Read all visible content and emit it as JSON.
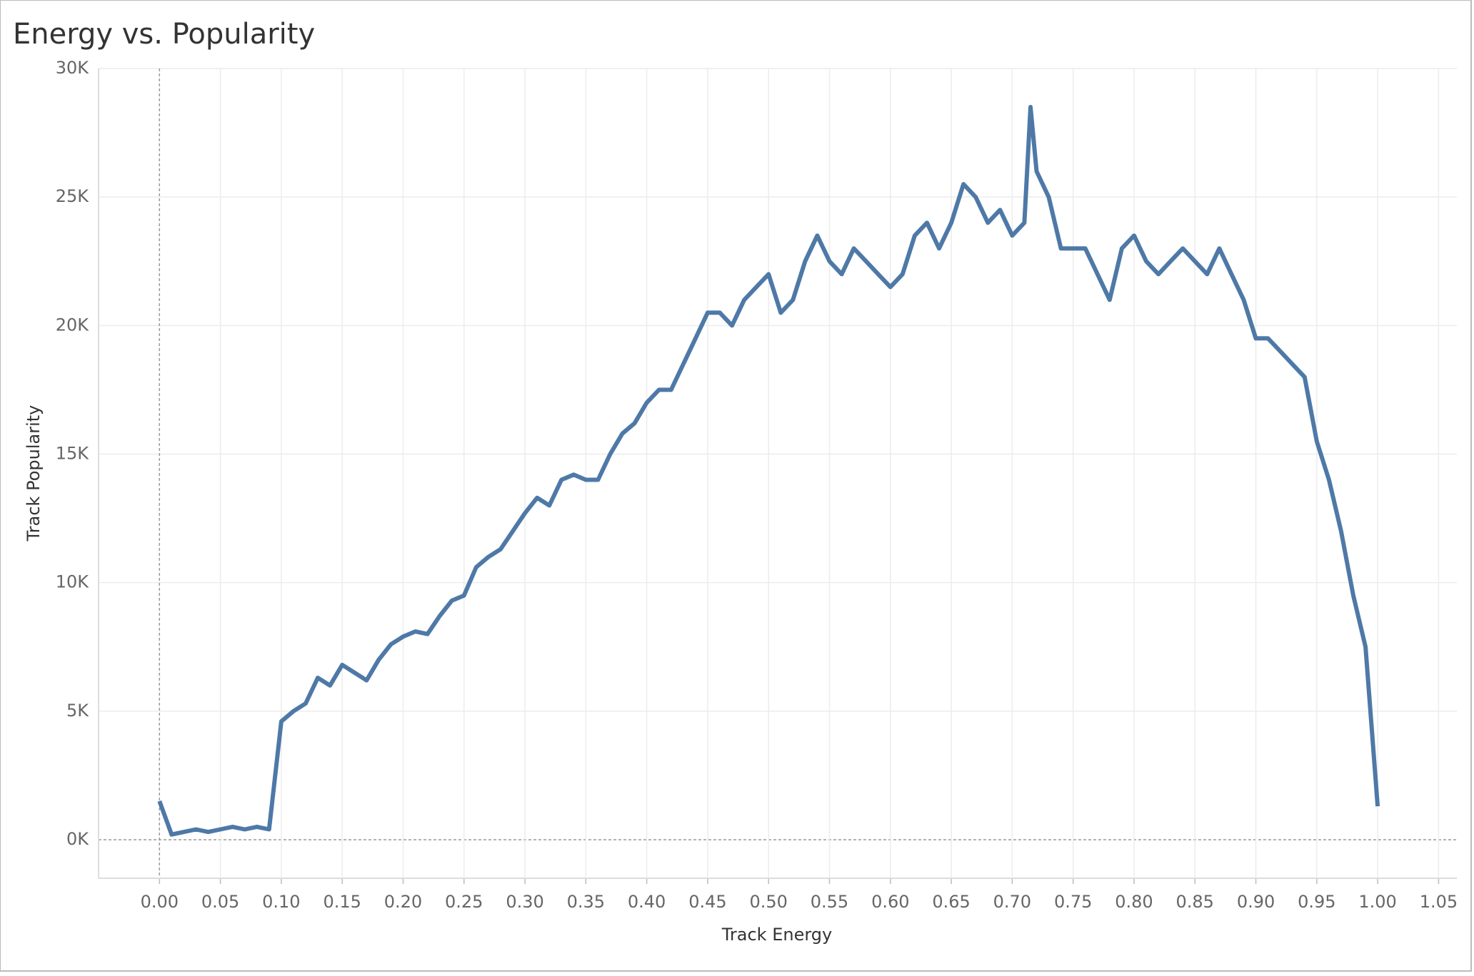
{
  "chart_data": {
    "type": "line",
    "title": "Energy vs. Popularity",
    "x_label": "Track Energy",
    "y_label": "Track Popularity",
    "xlim": [
      -0.05,
      1.065
    ],
    "ylim": [
      -1500,
      30000
    ],
    "xticks": [
      {
        "value": 0,
        "label": "0.00"
      },
      {
        "value": 0.05,
        "label": "0.05"
      },
      {
        "value": 0.1,
        "label": "0.10"
      },
      {
        "value": 0.15,
        "label": "0.15"
      },
      {
        "value": 0.2,
        "label": "0.20"
      },
      {
        "value": 0.25,
        "label": "0.25"
      },
      {
        "value": 0.3,
        "label": "0.30"
      },
      {
        "value": 0.35,
        "label": "0.35"
      },
      {
        "value": 0.4,
        "label": "0.40"
      },
      {
        "value": 0.45,
        "label": "0.45"
      },
      {
        "value": 0.5,
        "label": "0.50"
      },
      {
        "value": 0.55,
        "label": "0.55"
      },
      {
        "value": 0.6,
        "label": "0.60"
      },
      {
        "value": 0.65,
        "label": "0.65"
      },
      {
        "value": 0.7,
        "label": "0.70"
      },
      {
        "value": 0.75,
        "label": "0.75"
      },
      {
        "value": 0.8,
        "label": "0.80"
      },
      {
        "value": 0.85,
        "label": "0.85"
      },
      {
        "value": 0.9,
        "label": "0.90"
      },
      {
        "value": 0.95,
        "label": "0.95"
      },
      {
        "value": 1,
        "label": "1.00"
      },
      {
        "value": 1.05,
        "label": "1.05"
      }
    ],
    "yticks": [
      {
        "value": 0,
        "label": "0K"
      },
      {
        "value": 5000,
        "label": "5K"
      },
      {
        "value": 10000,
        "label": "10K"
      },
      {
        "value": 15000,
        "label": "15K"
      },
      {
        "value": 20000,
        "label": "20K"
      },
      {
        "value": 25000,
        "label": "25K"
      },
      {
        "value": 30000,
        "label": "30K"
      }
    ],
    "grid": true,
    "x": [
      0,
      0.01,
      0.02,
      0.03,
      0.04,
      0.05,
      0.06,
      0.07,
      0.08,
      0.09,
      0.1,
      0.11,
      0.12,
      0.13,
      0.14,
      0.15,
      0.16,
      0.17,
      0.18,
      0.19,
      0.2,
      0.21,
      0.22,
      0.23,
      0.24,
      0.25,
      0.26,
      0.27,
      0.28,
      0.29,
      0.3,
      0.31,
      0.32,
      0.33,
      0.34,
      0.35,
      0.36,
      0.37,
      0.38,
      0.39,
      0.4,
      0.41,
      0.42,
      0.43,
      0.44,
      0.45,
      0.46,
      0.47,
      0.48,
      0.49,
      0.5,
      0.51,
      0.52,
      0.53,
      0.54,
      0.55,
      0.56,
      0.57,
      0.58,
      0.59,
      0.6,
      0.61,
      0.62,
      0.63,
      0.64,
      0.65,
      0.66,
      0.67,
      0.68,
      0.69,
      0.7,
      0.71,
      0.715,
      0.72,
      0.73,
      0.74,
      0.75,
      0.76,
      0.77,
      0.78,
      0.79,
      0.8,
      0.81,
      0.82,
      0.83,
      0.84,
      0.85,
      0.86,
      0.87,
      0.88,
      0.89,
      0.9,
      0.91,
      0.92,
      0.93,
      0.94,
      0.95,
      0.96,
      0.97,
      0.98,
      0.99,
      1
    ],
    "series": [
      {
        "name": "Track Popularity",
        "color": "#4e79a7",
        "values": [
          1500,
          200,
          300,
          400,
          300,
          400,
          500,
          400,
          500,
          400,
          4600,
          5000,
          5300,
          6300,
          6000,
          6800,
          6500,
          6200,
          7000,
          7600,
          7900,
          8100,
          8000,
          8700,
          9300,
          9500,
          10600,
          11000,
          11300,
          12000,
          12700,
          13300,
          13000,
          14000,
          14200,
          14000,
          14000,
          15000,
          15800,
          16200,
          17000,
          17500,
          17500,
          18500,
          19500,
          20500,
          20500,
          20000,
          21000,
          21500,
          22000,
          20500,
          21000,
          22500,
          23500,
          22500,
          22000,
          23000,
          22500,
          22000,
          21500,
          22000,
          23500,
          24000,
          23000,
          24000,
          25500,
          25000,
          24000,
          24500,
          23500,
          24000,
          28500,
          26000,
          25000,
          23000,
          23000,
          23000,
          22000,
          21000,
          23000,
          23500,
          22500,
          22000,
          22500,
          23000,
          22500,
          22000,
          23000,
          22000,
          21000,
          19500,
          19500,
          19000,
          18500,
          18000,
          15500,
          14000,
          12000,
          9500,
          7500,
          1300
        ]
      }
    ]
  }
}
